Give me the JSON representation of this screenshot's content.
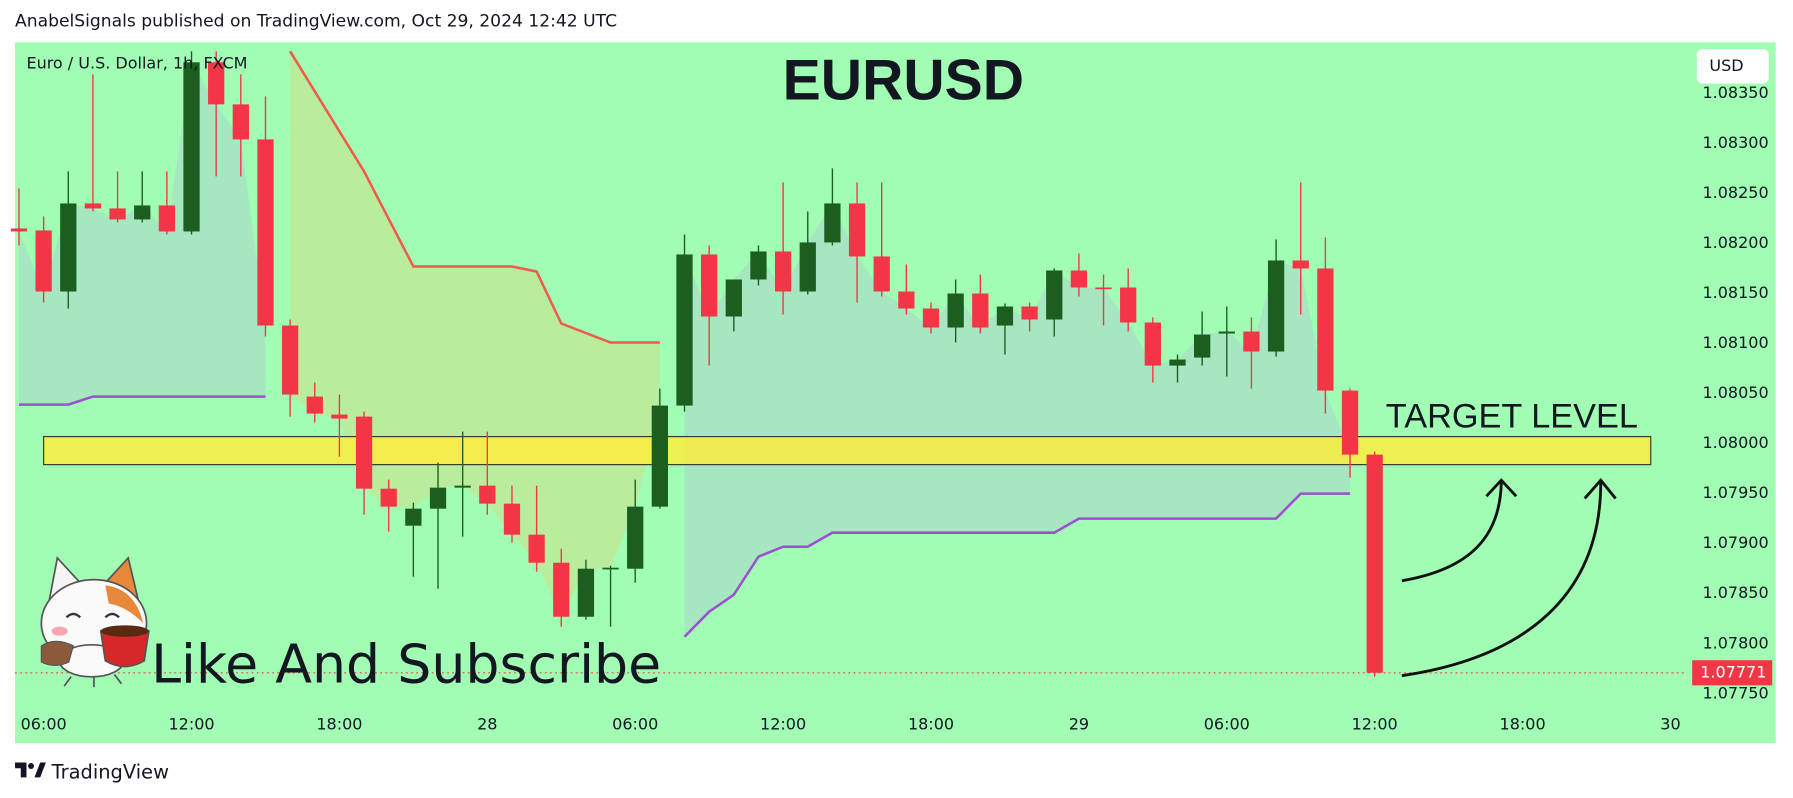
{
  "header": {
    "text": "AnabelSignals published on TradingView.com, Oct 29, 2024 12:42 UTC"
  },
  "footer": {
    "brand": "TradingView"
  },
  "chart_data": {
    "type": "candlestick",
    "title": "EURUSD",
    "symbol": "Euro / U.S. Dollar, 1h, FXCM",
    "currency": "USD",
    "annotation": "Like And Subscribe",
    "up_color": "#1b5e20",
    "down_color": "#f23645",
    "x": [
      5,
      6,
      7,
      8,
      9,
      10,
      11,
      12,
      13,
      14,
      15,
      16,
      17,
      18,
      19,
      20,
      21,
      22,
      23,
      24,
      25,
      26,
      27,
      28,
      29,
      30,
      31,
      32,
      33,
      34,
      35,
      36,
      37,
      38,
      39,
      40,
      41,
      42,
      43,
      44,
      45,
      46,
      47,
      48,
      49,
      50,
      51,
      52,
      53,
      54,
      55,
      56,
      57,
      58,
      59,
      60
    ],
    "open": [
      1.08215,
      1.08213,
      1.08152,
      1.0824,
      1.08235,
      1.08224,
      1.08238,
      1.08212,
      1.08381,
      1.08339,
      1.08304,
      1.08118,
      1.08047,
      1.08029,
      1.08027,
      1.07955,
      1.07918,
      1.07935,
      1.07956,
      1.07958,
      1.0794,
      1.07909,
      1.07881,
      1.07827,
      1.07875,
      1.07875,
      1.07937,
      1.08038,
      1.08189,
      1.08127,
      1.08164,
      1.08192,
      1.08152,
      1.08201,
      1.0824,
      1.08187,
      1.08152,
      1.08135,
      1.08116,
      1.0815,
      1.08118,
      1.08137,
      1.08124,
      1.08173,
      1.08156,
      1.08156,
      1.08121,
      1.08078,
      1.08086,
      1.0811,
      1.08112,
      1.08092,
      1.08183,
      1.08175,
      1.08053,
      1.07989
    ],
    "high": [
      1.08255,
      1.08227,
      1.08272,
      1.08369,
      1.08272,
      1.08272,
      1.08272,
      1.08392,
      1.08392,
      1.08369,
      1.08347,
      1.08124,
      1.08061,
      1.08049,
      1.08032,
      1.07964,
      1.07941,
      1.07981,
      1.08012,
      1.08012,
      1.07958,
      1.07958,
      1.07895,
      1.07884,
      1.07878,
      1.07964,
      1.08055,
      1.08209,
      1.08198,
      1.08164,
      1.08198,
      1.08261,
      1.08232,
      1.08275,
      1.08261,
      1.08261,
      1.08179,
      1.08141,
      1.08164,
      1.08169,
      1.0814,
      1.08141,
      1.08175,
      1.0819,
      1.08169,
      1.08175,
      1.08126,
      1.08089,
      1.08132,
      1.08137,
      1.08126,
      1.08204,
      1.08261,
      1.08206,
      1.08055,
      1.07992
    ],
    "low": [
      1.08198,
      1.08141,
      1.08135,
      1.08232,
      1.08221,
      1.08221,
      1.08209,
      1.08209,
      1.08267,
      1.08267,
      1.08107,
      1.08027,
      1.08021,
      1.07987,
      1.07929,
      1.07912,
      1.07867,
      1.07855,
      1.07907,
      1.07929,
      1.07901,
      1.07872,
      1.07817,
      1.07824,
      1.07817,
      1.07861,
      1.07935,
      1.08032,
      1.08078,
      1.08112,
      1.08158,
      1.08129,
      1.08149,
      1.08198,
      1.08141,
      1.08147,
      1.08129,
      1.0811,
      1.08101,
      1.0811,
      1.08089,
      1.08112,
      1.08107,
      1.08147,
      1.08118,
      1.08112,
      1.08061,
      1.08061,
      1.08078,
      1.08067,
      1.08055,
      1.08087,
      1.08129,
      1.0803,
      1.07966,
      1.07767
    ],
    "close": [
      1.08212,
      1.08152,
      1.0824,
      1.08235,
      1.08224,
      1.08238,
      1.08212,
      1.08381,
      1.08339,
      1.08304,
      1.08118,
      1.08049,
      1.0803,
      1.08025,
      1.07955,
      1.07937,
      1.07935,
      1.07956,
      1.07958,
      1.0794,
      1.07909,
      1.07881,
      1.07827,
      1.07875,
      1.07876,
      1.07937,
      1.08038,
      1.08189,
      1.08127,
      1.08164,
      1.08192,
      1.08152,
      1.08201,
      1.0824,
      1.08187,
      1.08152,
      1.08135,
      1.08116,
      1.0815,
      1.08116,
      1.08137,
      1.08124,
      1.08173,
      1.08156,
      1.08155,
      1.08121,
      1.08078,
      1.08084,
      1.08109,
      1.08112,
      1.08092,
      1.08183,
      1.08175,
      1.08053,
      1.07989,
      1.07771
    ],
    "indicators": [
      {
        "color": "#f05a4a",
        "fill": "rgba(214,214,130,0.45)",
        "x": [
          16,
          19,
          21,
          25,
          26,
          27,
          29,
          31
        ],
        "values": [
          1.08392,
          1.08272,
          1.08177,
          1.08177,
          1.08172,
          1.0812,
          1.08101,
          1.08101
        ]
      },
      {
        "color": "#9c4fd0",
        "fill": "rgba(170,215,200,0.6)",
        "x": [
          5,
          7,
          8,
          15,
          16,
          32,
          33,
          34,
          35,
          36,
          37,
          38,
          47,
          48,
          56,
          57,
          59
        ],
        "values": [
          1.08039,
          1.08039,
          1.08047,
          1.08047,
          null,
          1.07807,
          1.07832,
          1.07849,
          1.07887,
          1.07897,
          1.07897,
          1.07911,
          1.07911,
          1.07925,
          1.07925,
          1.0795,
          1.0795
        ]
      }
    ],
    "target_zone": {
      "label": "TARGET LEVEL",
      "from": 1.07979,
      "to": 1.08007,
      "x_range": [
        6,
        71.2
      ],
      "color": "#ffeb3b"
    },
    "last_price": 1.07771,
    "last_price_color": "#f23645",
    "xlim": [
      4.84,
      72.65
    ],
    "ylim": [
      1.07735,
      1.08401
    ],
    "xticks": [
      {
        "value": 6,
        "label": "06:00"
      },
      {
        "value": 12,
        "label": "12:00"
      },
      {
        "value": 18,
        "label": "18:00"
      },
      {
        "value": 24,
        "label": "28"
      },
      {
        "value": 30,
        "label": "06:00"
      },
      {
        "value": 36,
        "label": "12:00"
      },
      {
        "value": 42,
        "label": "18:00"
      },
      {
        "value": 48,
        "label": "29"
      },
      {
        "value": 54,
        "label": "06:00"
      },
      {
        "value": 60,
        "label": "12:00"
      },
      {
        "value": 66,
        "label": "18:00"
      },
      {
        "value": 72,
        "label": "30"
      }
    ],
    "yticks": [
      {
        "value": 1.0775,
        "label": "1.07750"
      },
      {
        "value": 1.078,
        "label": "1.07800"
      },
      {
        "value": 1.0785,
        "label": "1.07850"
      },
      {
        "value": 1.079,
        "label": "1.07900"
      },
      {
        "value": 1.0795,
        "label": "1.07950"
      },
      {
        "value": 1.08,
        "label": "1.08000"
      },
      {
        "value": 1.0805,
        "label": "1.08050"
      },
      {
        "value": 1.081,
        "label": "1.08100"
      },
      {
        "value": 1.0815,
        "label": "1.08150"
      },
      {
        "value": 1.082,
        "label": "1.08200"
      },
      {
        "value": 1.0825,
        "label": "1.08250"
      },
      {
        "value": 1.083,
        "label": "1.08300"
      },
      {
        "value": 1.0835,
        "label": "1.08350"
      }
    ]
  }
}
